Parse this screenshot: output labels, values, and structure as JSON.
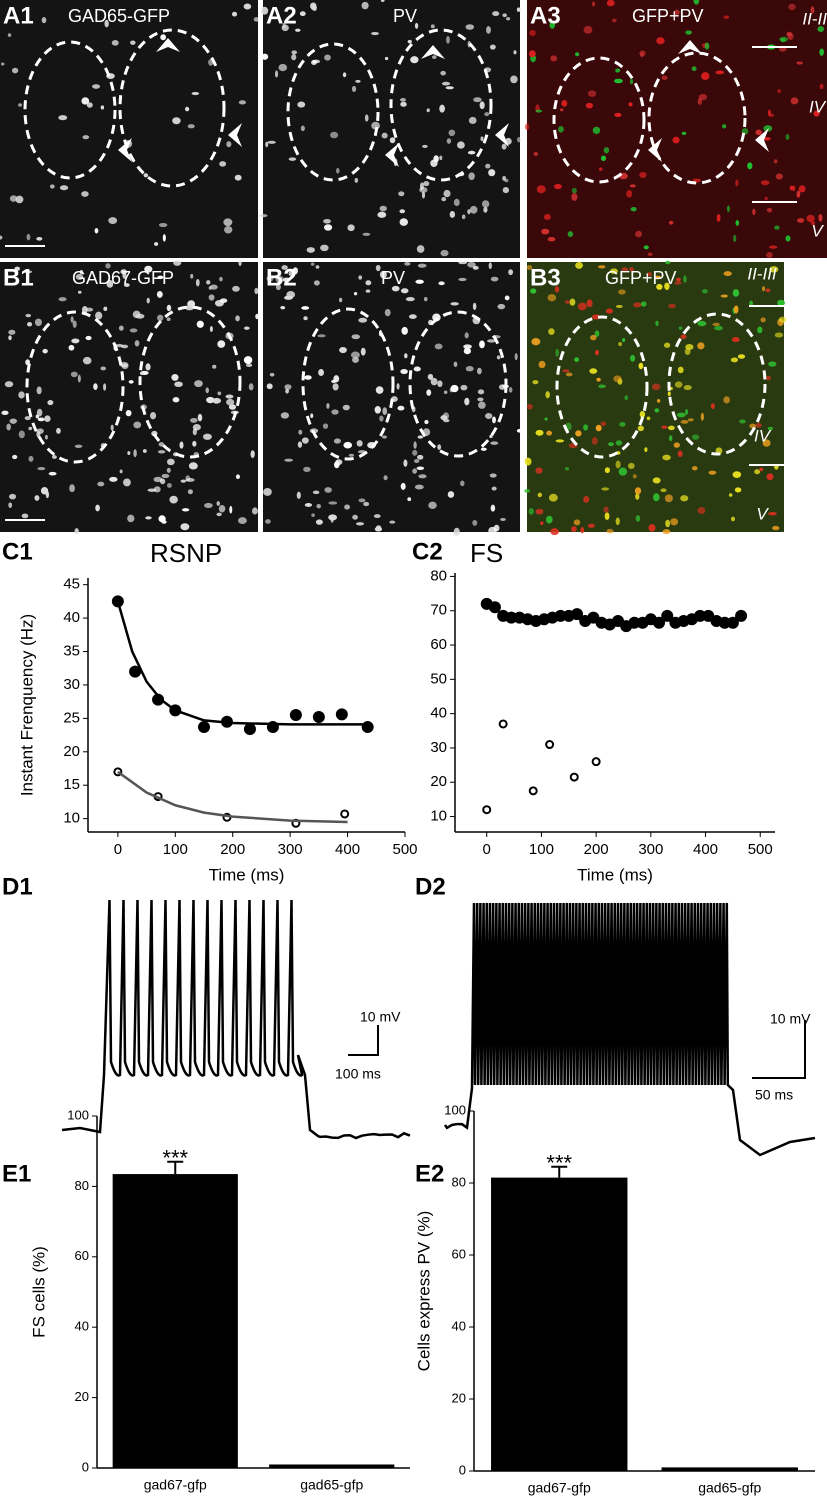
{
  "images": [
    {
      "label": "A1",
      "title": "GAD65-GFP"
    },
    {
      "label": "A2",
      "title": "PV"
    },
    {
      "label": "A3",
      "title": "GFP+PV",
      "layers": [
        "II-III",
        "IV",
        "V"
      ]
    },
    {
      "label": "B1",
      "title": "GAD67-GFP"
    },
    {
      "label": "B2",
      "title": "PV"
    },
    {
      "label": "B3",
      "title": "GFP+PV",
      "layers": [
        "II-III",
        "IV",
        "V"
      ]
    }
  ],
  "traces": [
    {
      "label": "D1",
      "scale_v": "10 mV",
      "scale_t": "100 ms"
    },
    {
      "label": "D2",
      "scale_v": "10 mV",
      "scale_t": "50 ms"
    }
  ],
  "chart_data": [
    {
      "type": "scatter",
      "panel": "C1",
      "title": "RSNP",
      "xlabel": "Time (ms)",
      "ylabel": "Instant Frenquency (Hz)",
      "xlim": [
        -52,
        500
      ],
      "ylim": [
        8,
        46
      ],
      "xticks": [
        0,
        100,
        200,
        300,
        400,
        500
      ],
      "yticks": [
        10,
        15,
        20,
        25,
        30,
        35,
        40,
        45
      ],
      "series": [
        {
          "style": "filled",
          "color": "#000000",
          "x": [
            0,
            30,
            70,
            100,
            150,
            190,
            230,
            270,
            310,
            350,
            390,
            435
          ],
          "values": [
            42.5,
            32,
            27.8,
            26.2,
            23.7,
            24.5,
            23.4,
            23.7,
            25.5,
            25.2,
            25.6,
            23.7
          ]
        },
        {
          "style": "line",
          "color": "#000000",
          "x": [
            0,
            25,
            50,
            75,
            100,
            150,
            200,
            300,
            435
          ],
          "values": [
            42.5,
            35,
            30.5,
            27.8,
            26.2,
            24.7,
            24.3,
            24.1,
            24.1
          ]
        },
        {
          "style": "open",
          "color": "#000000",
          "x": [
            0,
            70,
            190,
            310,
            395
          ],
          "values": [
            17,
            13.3,
            10.2,
            9.3,
            10.7
          ]
        },
        {
          "style": "line",
          "color": "#555555",
          "x": [
            0,
            50,
            100,
            150,
            200,
            300,
            400
          ],
          "values": [
            17,
            13.9,
            12,
            10.9,
            10.3,
            9.7,
            9.5
          ]
        }
      ]
    },
    {
      "type": "scatter",
      "panel": "C2",
      "title": "FS",
      "xlabel": "Time (ms)",
      "xlim": [
        -58,
        527
      ],
      "ylim": [
        5.5,
        81
      ],
      "xticks": [
        0,
        100,
        200,
        300,
        400,
        500
      ],
      "yticks": [
        10,
        20,
        30,
        40,
        50,
        60,
        70,
        80
      ],
      "series": [
        {
          "style": "filled",
          "color": "#000000",
          "x": [
            0,
            15,
            30,
            45,
            60,
            75,
            90,
            105,
            120,
            135,
            150,
            165,
            180,
            195,
            210,
            225,
            240,
            255,
            270,
            285,
            300,
            315,
            330,
            345,
            360,
            375,
            390,
            405,
            420,
            435,
            450,
            465
          ],
          "values": [
            72,
            71,
            68.5,
            68,
            68,
            67.5,
            67,
            67.5,
            68,
            68.5,
            68.5,
            69,
            67,
            68,
            66.5,
            66,
            67,
            65.5,
            66.5,
            66.5,
            67.5,
            66.5,
            68.5,
            66.5,
            67,
            67.5,
            68.5,
            68.5,
            67,
            66.5,
            66.5,
            68.5
          ]
        },
        {
          "style": "open",
          "color": "#000000",
          "x": [
            0,
            30,
            85,
            115,
            160,
            200
          ],
          "values": [
            12,
            37,
            17.5,
            31,
            21.5,
            26
          ]
        }
      ]
    },
    {
      "type": "bar",
      "panel": "E1",
      "ylabel": "FS cells (%)",
      "categories": [
        "gad67-gfp",
        "gad65-gfp"
      ],
      "values": [
        83.5,
        1
      ],
      "errors": [
        3.5,
        null
      ],
      "annotation": "***",
      "color": "#000000",
      "ylim": [
        0,
        100
      ],
      "yticks": [
        0,
        20,
        40,
        60,
        80,
        100
      ]
    },
    {
      "type": "bar",
      "panel": "E2",
      "ylabel": "Cells express PV (%)",
      "categories": [
        "gad67-gfp",
        "gad65-gfp"
      ],
      "values": [
        81.5,
        1
      ],
      "errors": [
        3,
        null
      ],
      "annotation": "***",
      "color": "#000000",
      "ylim": [
        0,
        100
      ],
      "yticks": [
        0,
        20,
        40,
        60,
        80,
        100
      ]
    }
  ]
}
